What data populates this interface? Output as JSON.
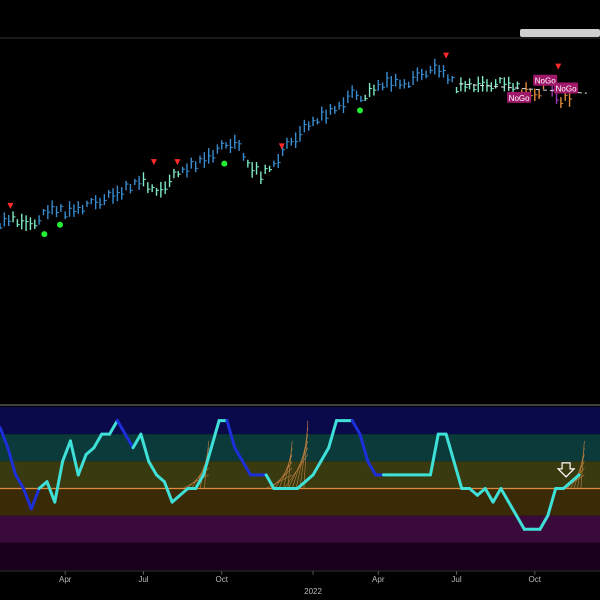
{
  "chart_data": {
    "type": "line",
    "title": "",
    "x_axis": {
      "ticks": [
        "Apr",
        "Jul",
        "Oct",
        "2022",
        "Apr",
        "Jul",
        "Oct"
      ],
      "tick_months": [
        2.5,
        5.5,
        8.5,
        12,
        14.5,
        17.5,
        20.5
      ]
    },
    "price_panel": {
      "series": {
        "month": [
          0,
          0.5,
          1,
          1.5,
          2,
          2.5,
          3,
          3.5,
          4,
          4.5,
          5,
          5.5,
          6,
          6.5,
          7,
          7.5,
          8,
          8.5,
          9,
          9.5,
          10,
          10.5,
          11,
          11.5,
          12,
          12.5,
          13,
          13.5,
          14,
          14.5,
          15,
          15.5,
          16,
          16.5,
          17,
          17.5,
          18,
          18.5,
          19,
          19.5,
          20,
          20.5,
          21,
          21.5,
          22
        ],
        "value": [
          226,
          234,
          222,
          232,
          244,
          240,
          246,
          250,
          258,
          262,
          274,
          282,
          262,
          282,
          292,
          302,
          312,
          322,
          332,
          300,
          288,
          302,
          324,
          342,
          354,
          366,
          376,
          390,
          388,
          400,
          408,
          404,
          412,
          424,
          418,
          400,
          404,
          400,
          406,
          402,
          396,
          390,
          404,
          382,
          386
        ],
        "regime": [
          "blue",
          "cyan",
          "cyan",
          "blue",
          "blue",
          "blue",
          "blue",
          "blue",
          "blue",
          "blue",
          "blue",
          "cyan",
          "cyan",
          "cyan",
          "blue",
          "blue",
          "blue",
          "blue",
          "blue",
          "cyan",
          "cyan",
          "blue",
          "blue",
          "blue",
          "blue",
          "blue",
          "blue",
          "blue",
          "cyan",
          "blue",
          "blue",
          "blue",
          "blue",
          "blue",
          "blue",
          "cyan",
          "cyan",
          "cyan",
          "cyan",
          "cyan",
          "orange",
          "orange",
          "purple",
          "orange",
          "purple"
        ]
      },
      "ylim": [
        0,
        460
      ],
      "sell_markers_month": [
        0.4,
        5.9,
        6.8,
        10.8,
        17.1,
        21.4
      ],
      "buy_markers_month": [
        1.7,
        2.3,
        8.6,
        13.8
      ],
      "labels": [
        {
          "text": "NoGo",
          "month": 20.9,
          "value": 408
        },
        {
          "text": "NoGo",
          "month": 19.9,
          "value": 386
        },
        {
          "text": "NoGo",
          "month": 21.7,
          "value": 398
        }
      ]
    },
    "oscillator_panel": {
      "ylim": [
        -6,
        6
      ],
      "zero_line": 0,
      "series": {
        "month": [
          0,
          0.3,
          0.6,
          0.9,
          1.2,
          1.5,
          1.8,
          2.1,
          2.4,
          2.7,
          3.0,
          3.3,
          3.6,
          3.9,
          4.2,
          4.5,
          4.8,
          5.1,
          5.4,
          5.7,
          6.0,
          6.3,
          6.6,
          6.9,
          7.2,
          7.5,
          7.8,
          8.1,
          8.4,
          8.7,
          9.0,
          9.3,
          9.6,
          9.9,
          10.2,
          10.5,
          10.8,
          11.1,
          11.4,
          11.7,
          12.0,
          12.3,
          12.6,
          12.9,
          13.2,
          13.5,
          13.8,
          14.1,
          14.4,
          14.7,
          15.0,
          15.3,
          15.6,
          15.9,
          16.2,
          16.5,
          16.8,
          17.1,
          17.4,
          17.7,
          18.0,
          18.3,
          18.6,
          18.9,
          19.2,
          19.5,
          19.8,
          20.1,
          20.4,
          20.7,
          21.0,
          21.3,
          21.6,
          21.9,
          22.2
        ],
        "value": [
          4.5,
          3,
          1,
          0,
          -1.5,
          0,
          0.5,
          -1,
          2,
          3.5,
          1,
          2.5,
          3,
          4,
          4,
          5,
          4,
          3,
          4,
          2,
          1,
          0.5,
          -1,
          -0.5,
          0,
          0,
          1,
          3,
          5,
          5,
          3,
          2,
          1,
          1,
          1,
          0,
          0,
          0,
          0,
          0.5,
          1,
          2,
          3,
          5,
          5,
          5,
          4,
          2,
          1,
          1,
          1,
          1,
          1,
          1,
          1,
          1,
          4,
          4,
          2,
          0,
          0,
          -0.5,
          0,
          -1,
          0,
          -1,
          -2,
          -3,
          -3,
          -3,
          -2,
          0,
          0,
          0.5,
          1
        ],
        "color": [
          "blue",
          "blue",
          "blue",
          "blue",
          "blue",
          "cyan",
          "cyan",
          "cyan",
          "cyan",
          "cyan",
          "cyan",
          "cyan",
          "cyan",
          "cyan",
          "cyan",
          "blue",
          "blue",
          "cyan",
          "cyan",
          "cyan",
          "cyan",
          "cyan",
          "cyan",
          "cyan",
          "cyan",
          "cyan",
          "cyan",
          "cyan",
          "cyan",
          "blue",
          "blue",
          "blue",
          "blue",
          "blue",
          "cyan",
          "cyan",
          "cyan",
          "cyan",
          "cyan",
          "cyan",
          "cyan",
          "cyan",
          "cyan",
          "cyan",
          "cyan",
          "blue",
          "blue",
          "blue",
          "blue",
          "cyan",
          "cyan",
          "cyan",
          "cyan",
          "cyan",
          "cyan",
          "cyan",
          "cyan",
          "cyan",
          "cyan",
          "cyan",
          "cyan",
          "cyan",
          "cyan",
          "cyan",
          "cyan",
          "cyan",
          "cyan",
          "cyan",
          "cyan",
          "cyan",
          "cyan",
          "cyan",
          "cyan",
          "cyan",
          "cyan"
        ]
      },
      "bands": [
        {
          "from": 4,
          "to": 6,
          "color": "#0a0a4a"
        },
        {
          "from": 2,
          "to": 4,
          "color": "#0a3a3a"
        },
        {
          "from": 0,
          "to": 2,
          "color": "#3a3a10"
        },
        {
          "from": -2,
          "to": 0,
          "color": "#3a2a08"
        },
        {
          "from": -4,
          "to": -2,
          "color": "#3a0a3a"
        },
        {
          "from": -6,
          "to": -4,
          "color": "#1a001a"
        }
      ]
    },
    "colors": {
      "blue": "#3a8ccf",
      "cyan": "#7fe8c8",
      "orange": "#e08a3a",
      "purple": "#9a3ab0",
      "osc_blue": "#1c2fd8",
      "osc_cyan": "#3fe0d8",
      "zero_line": "#e08a3a",
      "sell": "#ff2a2a",
      "buy": "#22ee33",
      "label_bg": "#a0186a"
    }
  }
}
